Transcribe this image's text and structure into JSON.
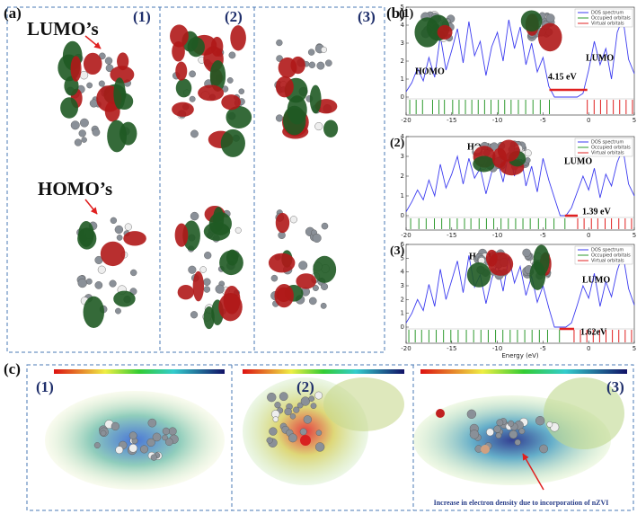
{
  "panel_a": {
    "label": "(a)",
    "lumo_label": "LUMO’s",
    "homo_label": "HOMO’s",
    "columns": [
      "(1)",
      "(2)",
      "(3)"
    ]
  },
  "panel_b": {
    "label": "(b)"
  },
  "panel_c": {
    "label": "(c)",
    "columns": [
      "(1)",
      "(2)",
      "(3)"
    ],
    "note": "Increase in electron density due to incorporation of nZVI"
  },
  "chart_data": [
    {
      "type": "line",
      "panel_label": "(1)",
      "homo_label": "HOMO",
      "lumo_label": "LUMO",
      "gap_label": "4.15 eV",
      "x": [
        -20,
        -19.375,
        -18.75,
        -18.125,
        -17.5,
        -16.875,
        -16.25,
        -15.625,
        -15,
        -14.375,
        -13.75,
        -13.125,
        -12.5,
        -11.875,
        -11.25,
        -10.625,
        -10,
        -9.375,
        -8.75,
        -8.125,
        -7.5,
        -6.875,
        -6.25,
        -5.625,
        -5,
        -4.375,
        -3.75,
        -3.125,
        -2.5,
        -1.875,
        -1.25,
        -0.625,
        0,
        0.625,
        1.25,
        1.875,
        2.5,
        3.125,
        3.75,
        4.375,
        5
      ],
      "series": [
        {
          "name": "DOS spectrum",
          "color": "#3b3bf0",
          "values": [
            0.3,
            0.8,
            1.6,
            0.9,
            2.2,
            1.1,
            3.4,
            1.5,
            2.6,
            3.8,
            1.9,
            4.2,
            2.3,
            3.1,
            1.2,
            2.8,
            3.6,
            2.0,
            4.3,
            2.7,
            3.9,
            1.8,
            3.0,
            1.4,
            2.2,
            0.6,
            0,
            0,
            0,
            0,
            0,
            0.2,
            1.5,
            3.1,
            1.8,
            2.7,
            1.0,
            3.6,
            4.4,
            2.1,
            1.3
          ]
        }
      ],
      "occupied_orbitals": {
        "name": "Occupied orbitals",
        "color": "#2e9a2e",
        "values": [
          -19.6,
          -18.9,
          -18.2,
          -17.1,
          -16.4,
          -15.8,
          -14.9,
          -14.2,
          -13.5,
          -12.8,
          -12.1,
          -11.4,
          -10.7,
          -9.9,
          -9.2,
          -8.5,
          -7.7,
          -6.9,
          -6.1,
          -5.3,
          -4.3
        ]
      },
      "virtual_orbitals": {
        "name": "Virtual orbitals",
        "color": "#e02020",
        "values": [
          -0.15,
          0.6,
          1.3,
          2.0,
          2.7,
          3.4,
          4.1,
          4.8
        ]
      },
      "xlim": [
        -20,
        5
      ],
      "xticks": [
        -20,
        -15,
        -10,
        -5,
        0,
        5
      ],
      "ylim": [
        0,
        5
      ],
      "yticks": [
        0,
        1,
        2,
        3,
        4,
        5
      ]
    },
    {
      "type": "line",
      "panel_label": "(2)",
      "homo_label": "HOMO",
      "lumo_label": "LUMO",
      "gap_label": "1.39 eV",
      "x": [
        -20,
        -19.375,
        -18.75,
        -18.125,
        -17.5,
        -16.875,
        -16.25,
        -15.625,
        -15,
        -14.375,
        -13.75,
        -13.125,
        -12.5,
        -11.875,
        -11.25,
        -10.625,
        -10,
        -9.375,
        -8.75,
        -8.125,
        -7.5,
        -6.875,
        -6.25,
        -5.625,
        -5,
        -4.375,
        -3.75,
        -3.125,
        -2.5,
        -1.875,
        -1.25,
        -0.625,
        0,
        0.625,
        1.25,
        1.875,
        2.5,
        3.125,
        3.75,
        4.375,
        5
      ],
      "series": [
        {
          "name": "DOS spectrum",
          "color": "#3b3bf0",
          "values": [
            0.2,
            0.7,
            1.3,
            0.8,
            1.8,
            1.0,
            2.6,
            1.4,
            2.1,
            3.0,
            1.6,
            2.9,
            1.9,
            2.4,
            1.1,
            2.2,
            2.8,
            1.7,
            3.2,
            2.0,
            3.3,
            1.5,
            2.5,
            1.2,
            2.9,
            1.8,
            0.9,
            0,
            0,
            0.4,
            1.2,
            2.0,
            1.3,
            2.4,
            0.9,
            2.1,
            1.5,
            2.7,
            3.4,
            1.6,
            1.0
          ]
        }
      ],
      "occupied_orbitals": {
        "name": "Occupied orbitals",
        "color": "#2e9a2e",
        "values": [
          -19.5,
          -18.6,
          -17.8,
          -16.9,
          -16.1,
          -15.2,
          -14.4,
          -13.6,
          -12.9,
          -12.0,
          -11.2,
          -10.4,
          -9.6,
          -8.8,
          -8.0,
          -7.2,
          -6.4,
          -5.5,
          -4.7,
          -3.8,
          -2.6
        ]
      },
      "virtual_orbitals": {
        "name": "Virtual orbitals",
        "color": "#e02020",
        "values": [
          -1.2,
          -0.5,
          0.3,
          1.0,
          1.8,
          2.5,
          3.3,
          4.0,
          4.7
        ]
      },
      "xlim": [
        -20,
        5
      ],
      "xticks": [
        -20,
        -15,
        -10,
        -5,
        0,
        5
      ],
      "ylim": [
        0,
        4
      ],
      "yticks": [
        0,
        1,
        2,
        3,
        4
      ]
    },
    {
      "type": "line",
      "panel_label": "(3)",
      "homo_label": "HOMO",
      "lumo_label": "LUMO",
      "gap_label": "1.62eV",
      "xlabel": "Energy (eV)",
      "x": [
        -20,
        -19.375,
        -18.75,
        -18.125,
        -17.5,
        -16.875,
        -16.25,
        -15.625,
        -15,
        -14.375,
        -13.75,
        -13.125,
        -12.5,
        -11.875,
        -11.25,
        -10.625,
        -10,
        -9.375,
        -8.75,
        -8.125,
        -7.5,
        -6.875,
        -6.25,
        -5.625,
        -5,
        -4.375,
        -3.75,
        -3.125,
        -2.5,
        -1.875,
        -1.25,
        -0.625,
        0,
        0.625,
        1.25,
        1.875,
        2.5,
        3.125,
        3.75,
        4.375,
        5
      ],
      "series": [
        {
          "name": "DOS spectrum",
          "color": "#3b3bf0",
          "values": [
            0.3,
            1.0,
            2.0,
            1.2,
            3.1,
            1.5,
            4.2,
            2.0,
            3.4,
            4.8,
            2.5,
            5.2,
            2.9,
            3.8,
            1.7,
            3.5,
            4.6,
            2.6,
            5.1,
            3.2,
            4.4,
            2.3,
            3.7,
            1.8,
            3.0,
            1.4,
            0,
            0,
            0,
            0.3,
            1.6,
            3.0,
            2.1,
            3.9,
            1.5,
            3.3,
            2.2,
            4.1,
            5.3,
            2.8,
            1.6
          ]
        }
      ],
      "occupied_orbitals": {
        "name": "Occupied orbitals",
        "color": "#2e9a2e",
        "values": [
          -19.7,
          -19.0,
          -18.3,
          -17.5,
          -16.7,
          -15.9,
          -15.1,
          -14.3,
          -13.4,
          -12.6,
          -11.8,
          -11.0,
          -10.2,
          -9.4,
          -8.6,
          -7.8,
          -7.0,
          -6.2,
          -5.4,
          -4.5,
          -3.2
        ]
      },
      "virtual_orbitals": {
        "name": "Virtual orbitals",
        "color": "#e02020",
        "values": [
          -1.6,
          -0.9,
          -0.2,
          0.5,
          1.2,
          1.9,
          2.6,
          3.3,
          4.0,
          4.7
        ]
      },
      "xlim": [
        -20,
        5
      ],
      "xticks": [
        -20,
        -15,
        -10,
        -5,
        0,
        5
      ],
      "ylim": [
        0,
        6
      ],
      "yticks": [
        0,
        1,
        2,
        3,
        4,
        5,
        6
      ]
    }
  ]
}
